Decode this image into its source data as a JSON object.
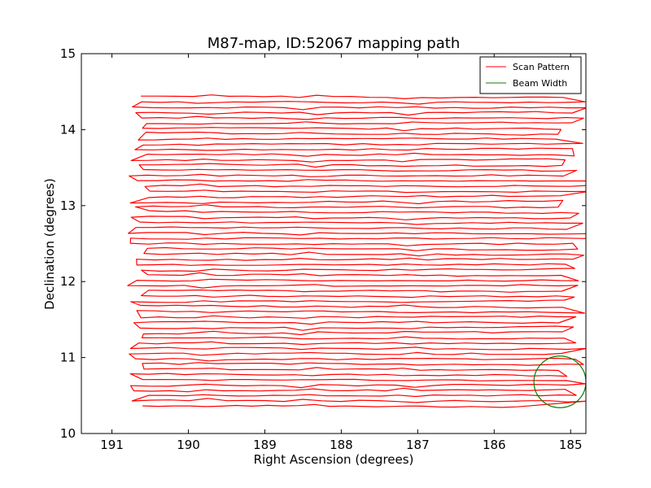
{
  "chart_data": {
    "type": "line",
    "title": "M87-map, ID:52067 mapping path",
    "xlabel": "Right Ascension (degrees)",
    "ylabel": "Declination (degrees)",
    "xlim": [
      191.4,
      184.8
    ],
    "ylim": [
      10,
      15
    ],
    "x_ticks": [
      191,
      190,
      189,
      188,
      187,
      186,
      185
    ],
    "x_tick_labels": [
      "191",
      "190",
      "189",
      "188",
      "187",
      "186",
      "185"
    ],
    "y_ticks": [
      10,
      11,
      12,
      13,
      14,
      15
    ],
    "y_tick_labels": [
      "10",
      "11",
      "12",
      "13",
      "14",
      "15"
    ],
    "grid": false,
    "legend": {
      "position": "upper right",
      "entries": [
        {
          "label": "Scan Pattern",
          "color": "#ff0000"
        },
        {
          "label": "Beam Width",
          "color": "#008000"
        }
      ]
    },
    "scan_pattern": {
      "color": "#ff0000",
      "num_rows": 60,
      "dec_top": 14.43,
      "dec_bottom": 10.36,
      "ra_left_range": [
        190.5,
        190.8
      ],
      "ra_right_range": [
        184.75,
        185.2
      ],
      "seam_ra": [
        189.78,
        188.42,
        187.1
      ],
      "final_row": {
        "dec": 10.36,
        "ra_start": 190.6,
        "ra_end": 185.7
      }
    },
    "beam_width": {
      "color": "#008000",
      "center_ra": 185.14,
      "center_dec": 10.68,
      "radius_deg": 0.34
    }
  }
}
